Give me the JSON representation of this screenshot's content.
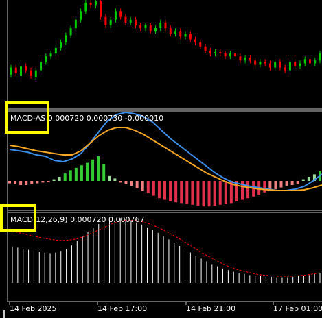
{
  "panels": {
    "macd_as": {
      "name": "MACD-AS",
      "values": "0.000720 0.000730 -0.000010"
    },
    "macd": {
      "name": "MACD",
      "params": "(12,26,9)",
      "values": "0.000720 0.000767"
    }
  },
  "time_axis": {
    "ticks": [
      "14 Feb 2025",
      "14 Feb 17:00",
      "14 Feb 21:00",
      "17 Feb 01:00"
    ]
  },
  "colors": {
    "background": "#000000",
    "bull_candle": "#00cc00",
    "bear_candle": "#ff0000",
    "macd_as_line": "#3b8eea",
    "macd_as_signal": "#f5a623",
    "hist_up_strong": "#33cc33",
    "hist_up_weak": "#99dd99",
    "hist_down_strong": "#e0304a",
    "hist_down_weak": "#f08080",
    "macd_hist": "#ffffff",
    "macd_signal": "#ff0000",
    "highlight": "#ffff00"
  },
  "chart_data": [
    {
      "type": "candlestick",
      "panel": "price",
      "candles": [
        {
          "o": 0.47,
          "c": 0.52
        },
        {
          "o": 0.52,
          "c": 0.48
        },
        {
          "o": 0.46,
          "c": 0.53
        },
        {
          "o": 0.53,
          "c": 0.5
        },
        {
          "o": 0.5,
          "c": 0.46
        },
        {
          "o": 0.45,
          "c": 0.5
        },
        {
          "o": 0.5,
          "c": 0.56
        },
        {
          "o": 0.56,
          "c": 0.6
        },
        {
          "o": 0.6,
          "c": 0.62
        },
        {
          "o": 0.62,
          "c": 0.66
        },
        {
          "o": 0.66,
          "c": 0.7
        },
        {
          "o": 0.7,
          "c": 0.75
        },
        {
          "o": 0.75,
          "c": 0.8
        },
        {
          "o": 0.8,
          "c": 0.86
        },
        {
          "o": 0.86,
          "c": 0.92
        },
        {
          "o": 0.92,
          "c": 0.98
        },
        {
          "o": 0.98,
          "c": 0.96
        },
        {
          "o": 0.96,
          "c": 0.99
        },
        {
          "o": 0.99,
          "c": 0.88
        },
        {
          "o": 0.88,
          "c": 0.82
        },
        {
          "o": 0.82,
          "c": 0.86
        },
        {
          "o": 0.86,
          "c": 0.92
        },
        {
          "o": 0.92,
          "c": 0.88
        },
        {
          "o": 0.88,
          "c": 0.84
        },
        {
          "o": 0.84,
          "c": 0.86
        },
        {
          "o": 0.86,
          "c": 0.82
        },
        {
          "o": 0.82,
          "c": 0.8
        },
        {
          "o": 0.8,
          "c": 0.82
        },
        {
          "o": 0.82,
          "c": 0.78
        },
        {
          "o": 0.78,
          "c": 0.8
        },
        {
          "o": 0.8,
          "c": 0.84
        },
        {
          "o": 0.84,
          "c": 0.8
        },
        {
          "o": 0.8,
          "c": 0.76
        },
        {
          "o": 0.76,
          "c": 0.78
        },
        {
          "o": 0.78,
          "c": 0.74
        },
        {
          "o": 0.74,
          "c": 0.76
        },
        {
          "o": 0.76,
          "c": 0.72
        },
        {
          "o": 0.72,
          "c": 0.7
        },
        {
          "o": 0.7,
          "c": 0.67
        },
        {
          "o": 0.67,
          "c": 0.64
        },
        {
          "o": 0.64,
          "c": 0.62
        },
        {
          "o": 0.62,
          "c": 0.63
        },
        {
          "o": 0.63,
          "c": 0.62
        },
        {
          "o": 0.62,
          "c": 0.6
        },
        {
          "o": 0.6,
          "c": 0.62
        },
        {
          "o": 0.62,
          "c": 0.6
        },
        {
          "o": 0.6,
          "c": 0.57
        },
        {
          "o": 0.57,
          "c": 0.59
        },
        {
          "o": 0.59,
          "c": 0.57
        },
        {
          "o": 0.57,
          "c": 0.54
        },
        {
          "o": 0.54,
          "c": 0.56
        },
        {
          "o": 0.56,
          "c": 0.55
        },
        {
          "o": 0.55,
          "c": 0.52
        },
        {
          "o": 0.52,
          "c": 0.56
        },
        {
          "o": 0.56,
          "c": 0.52
        },
        {
          "o": 0.52,
          "c": 0.5
        },
        {
          "o": 0.5,
          "c": 0.56
        },
        {
          "o": 0.56,
          "c": 0.53
        },
        {
          "o": 0.53,
          "c": 0.55
        },
        {
          "o": 0.55,
          "c": 0.58
        },
        {
          "o": 0.58,
          "c": 0.55
        },
        {
          "o": 0.55,
          "c": 0.57
        },
        {
          "o": 0.57,
          "c": 0.62
        }
      ]
    },
    {
      "type": "line",
      "panel": "macd_as",
      "series": [
        {
          "role": "main",
          "values": [
            0.46,
            0.44,
            0.42,
            0.38,
            0.36,
            0.3,
            0.28,
            0.32,
            0.4,
            0.55,
            0.72,
            0.88,
            0.97,
            1.0,
            0.98,
            0.94,
            0.86,
            0.74,
            0.62,
            0.52,
            0.42,
            0.32,
            0.22,
            0.12,
            0.04,
            -0.02,
            -0.05,
            -0.08,
            -0.1,
            -0.12,
            -0.14,
            -0.14,
            -0.12,
            -0.08,
            0.0,
            0.1
          ]
        },
        {
          "role": "signal",
          "values": [
            0.52,
            0.5,
            0.47,
            0.44,
            0.42,
            0.4,
            0.38,
            0.38,
            0.44,
            0.55,
            0.66,
            0.74,
            0.78,
            0.78,
            0.74,
            0.68,
            0.6,
            0.52,
            0.44,
            0.36,
            0.28,
            0.2,
            0.12,
            0.06,
            0.0,
            -0.05,
            -0.08,
            -0.1,
            -0.12,
            -0.13,
            -0.14,
            -0.14,
            -0.14,
            -0.13,
            -0.1,
            -0.06
          ]
        }
      ]
    },
    {
      "type": "bar",
      "panel": "macd_as_histogram",
      "values": [
        -0.03,
        -0.04,
        -0.05,
        -0.05,
        -0.04,
        -0.03,
        -0.02,
        -0.01,
        0.02,
        0.05,
        0.09,
        0.13,
        0.16,
        0.19,
        0.22,
        0.26,
        0.3,
        0.2,
        0.06,
        0.03,
        -0.02,
        -0.04,
        -0.06,
        -0.09,
        -0.12,
        -0.15,
        -0.18,
        -0.21,
        -0.23,
        -0.25,
        -0.26,
        -0.27,
        -0.28,
        -0.29,
        -0.3,
        -0.31,
        -0.31,
        -0.3,
        -0.29,
        -0.28,
        -0.27,
        -0.25,
        -0.23,
        -0.21,
        -0.19,
        -0.17,
        -0.14,
        -0.12,
        -0.1,
        -0.08,
        -0.06,
        -0.05,
        -0.04,
        0.02,
        0.05,
        0.08,
        0.12
      ]
    },
    {
      "type": "bar",
      "panel": "macd",
      "values": [
        0.44,
        0.42,
        0.4,
        0.38,
        0.37,
        0.35,
        0.33,
        0.32,
        0.33,
        0.36,
        0.4,
        0.46,
        0.54,
        0.62,
        0.7,
        0.78,
        0.85,
        0.9,
        0.93,
        0.95,
        0.96,
        0.95,
        0.92,
        0.88,
        0.84,
        0.79,
        0.74,
        0.69,
        0.63,
        0.57,
        0.51,
        0.45,
        0.39,
        0.33,
        0.27,
        0.22,
        0.17,
        0.12,
        0.08,
        0.04,
        0.01,
        -0.02,
        -0.04,
        -0.06,
        -0.08,
        -0.09,
        -0.1,
        -0.11,
        -0.11,
        -0.12,
        -0.12,
        -0.12,
        -0.11,
        -0.1,
        -0.09,
        -0.08,
        -0.06,
        -0.04
      ]
    },
    {
      "type": "line",
      "panel": "macd_signal",
      "values": [
        0.72,
        0.69,
        0.66,
        0.63,
        0.6,
        0.58,
        0.56,
        0.55,
        0.56,
        0.58,
        0.62,
        0.68,
        0.74,
        0.8,
        0.86,
        0.9,
        0.92,
        0.92,
        0.9,
        0.86,
        0.81,
        0.75,
        0.68,
        0.61,
        0.53,
        0.45,
        0.37,
        0.29,
        0.22,
        0.15,
        0.09,
        0.04,
        0.0,
        -0.03,
        -0.06,
        -0.08,
        -0.09,
        -0.1,
        -0.1,
        -0.1,
        -0.09,
        -0.08,
        -0.06,
        -0.04
      ]
    }
  ]
}
